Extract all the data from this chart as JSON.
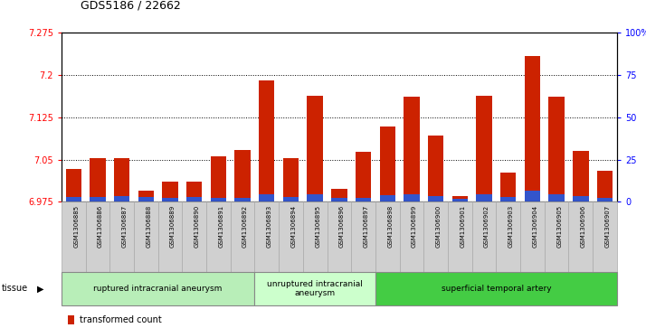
{
  "title": "GDS5186 / 22662",
  "samples": [
    "GSM1306885",
    "GSM1306886",
    "GSM1306887",
    "GSM1306888",
    "GSM1306889",
    "GSM1306890",
    "GSM1306891",
    "GSM1306892",
    "GSM1306893",
    "GSM1306894",
    "GSM1306895",
    "GSM1306896",
    "GSM1306897",
    "GSM1306898",
    "GSM1306899",
    "GSM1306900",
    "GSM1306901",
    "GSM1306902",
    "GSM1306903",
    "GSM1306904",
    "GSM1306905",
    "GSM1306906",
    "GSM1306907"
  ],
  "red_values": [
    7.033,
    7.052,
    7.052,
    6.995,
    7.01,
    7.01,
    7.056,
    7.067,
    7.19,
    7.052,
    7.163,
    6.998,
    7.063,
    7.108,
    7.162,
    7.092,
    6.985,
    7.163,
    7.026,
    7.233,
    7.162,
    7.065,
    7.03
  ],
  "blue_heights": [
    0.008,
    0.008,
    0.01,
    0.008,
    0.007,
    0.008,
    0.007,
    0.007,
    0.013,
    0.008,
    0.013,
    0.007,
    0.007,
    0.012,
    0.013,
    0.01,
    0.005,
    0.013,
    0.008,
    0.02,
    0.013,
    0.01,
    0.007
  ],
  "y_min": 6.975,
  "y_max": 7.275,
  "y_ticks": [
    6.975,
    7.05,
    7.125,
    7.2,
    7.275
  ],
  "y_tick_labels": [
    "6.975",
    "7.05",
    "7.125",
    "7.2",
    "7.275"
  ],
  "right_y_tick_labels": [
    "0",
    "25",
    "50",
    "75",
    "100%"
  ],
  "groups": [
    {
      "label": "ruptured intracranial aneurysm",
      "start": 0,
      "end": 8,
      "color": "#b8eeb8"
    },
    {
      "label": "unruptured intracranial\naneurysm",
      "start": 8,
      "end": 13,
      "color": "#ccffcc"
    },
    {
      "label": "superficial temporal artery",
      "start": 13,
      "end": 23,
      "color": "#44cc44"
    }
  ],
  "bar_color": "#cc2200",
  "blue_color": "#3355cc",
  "plot_bg": "#ffffff",
  "xtick_bg": "#d0d0d0"
}
